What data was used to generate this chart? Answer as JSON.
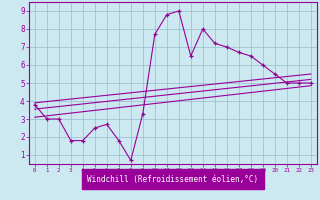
{
  "x": [
    0,
    1,
    2,
    3,
    4,
    5,
    6,
    7,
    8,
    9,
    10,
    11,
    12,
    13,
    14,
    15,
    16,
    17,
    18,
    19,
    20,
    21,
    22,
    23
  ],
  "y_main": [
    3.8,
    3.0,
    3.0,
    1.8,
    1.8,
    2.5,
    2.7,
    1.8,
    0.7,
    3.3,
    7.7,
    8.8,
    9.0,
    6.5,
    8.0,
    7.2,
    7.0,
    6.7,
    6.5,
    6.0,
    5.5,
    5.0,
    5.0,
    5.0
  ],
  "line_color": "#990099",
  "bg_color": "#cce8f0",
  "grid_color": "#99bbcc",
  "xlabel": "Windchill (Refroidissement éolien,°C)",
  "ylabel_ticks": [
    1,
    2,
    3,
    4,
    5,
    6,
    7,
    8,
    9
  ],
  "xlim": [
    -0.5,
    23.5
  ],
  "ylim": [
    0.5,
    9.5
  ],
  "reg1_start": 3.9,
  "reg1_end": 5.5,
  "reg2_start": 3.55,
  "reg2_end": 5.2,
  "reg3_start": 3.1,
  "reg3_end": 4.85
}
